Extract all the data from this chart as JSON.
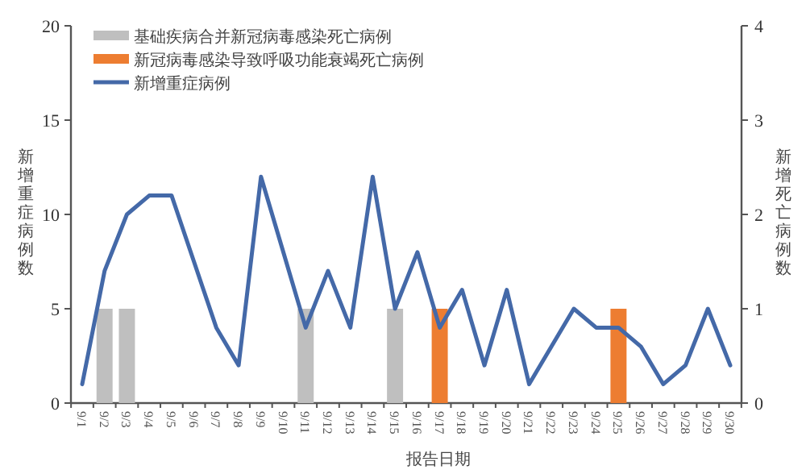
{
  "chart_data": {
    "type": "bar",
    "xlabel": "报告日期",
    "ylabel": "新增重症病例数",
    "y2label": "新增死亡病例数",
    "categories": [
      "9/1",
      "9/2",
      "9/3",
      "9/4",
      "9/5",
      "9/6",
      "9/7",
      "9/8",
      "9/9",
      "9/10",
      "9/11",
      "9/12",
      "9/13",
      "9/14",
      "9/15",
      "9/16",
      "9/17",
      "9/18",
      "9/19",
      "9/20",
      "9/21",
      "9/22",
      "9/23",
      "9/24",
      "9/25",
      "9/26",
      "9/27",
      "9/28",
      "9/29",
      "9/30"
    ],
    "series": [
      {
        "name": "基础疾病合并新冠病毒感染死亡病例",
        "axis": "y2",
        "color": "#bfbfbf",
        "values": [
          null,
          1,
          1,
          null,
          null,
          null,
          null,
          null,
          null,
          null,
          1,
          null,
          null,
          null,
          1,
          null,
          null,
          null,
          null,
          null,
          null,
          null,
          null,
          null,
          null,
          null,
          null,
          null,
          null,
          null
        ]
      },
      {
        "name": "新冠病毒感染导致呼吸功能衰竭死亡病例",
        "axis": "y2",
        "color": "#ed7d31",
        "values": [
          null,
          null,
          null,
          null,
          null,
          null,
          null,
          null,
          null,
          null,
          null,
          null,
          null,
          null,
          null,
          null,
          1,
          null,
          null,
          null,
          null,
          null,
          null,
          null,
          1,
          null,
          null,
          null,
          null,
          null
        ]
      },
      {
        "name": "新增重症病例",
        "type": "line",
        "color": "#4469a8",
        "values": [
          1,
          7,
          10,
          11,
          11,
          7.5,
          4,
          2,
          12,
          8,
          4,
          7,
          4,
          12,
          5,
          8,
          4,
          6,
          2,
          6,
          1,
          3,
          5,
          4,
          4,
          3,
          1,
          2,
          5,
          2
        ]
      }
    ],
    "ylim": [
      0,
      20
    ],
    "yticks": [
      0,
      5,
      10,
      15,
      20
    ],
    "y2lim": [
      0,
      4
    ],
    "y2ticks": [
      0,
      1,
      2,
      3,
      4
    ],
    "grid": false,
    "legend": "top left",
    "marker": "none",
    "line_style": "solid"
  }
}
